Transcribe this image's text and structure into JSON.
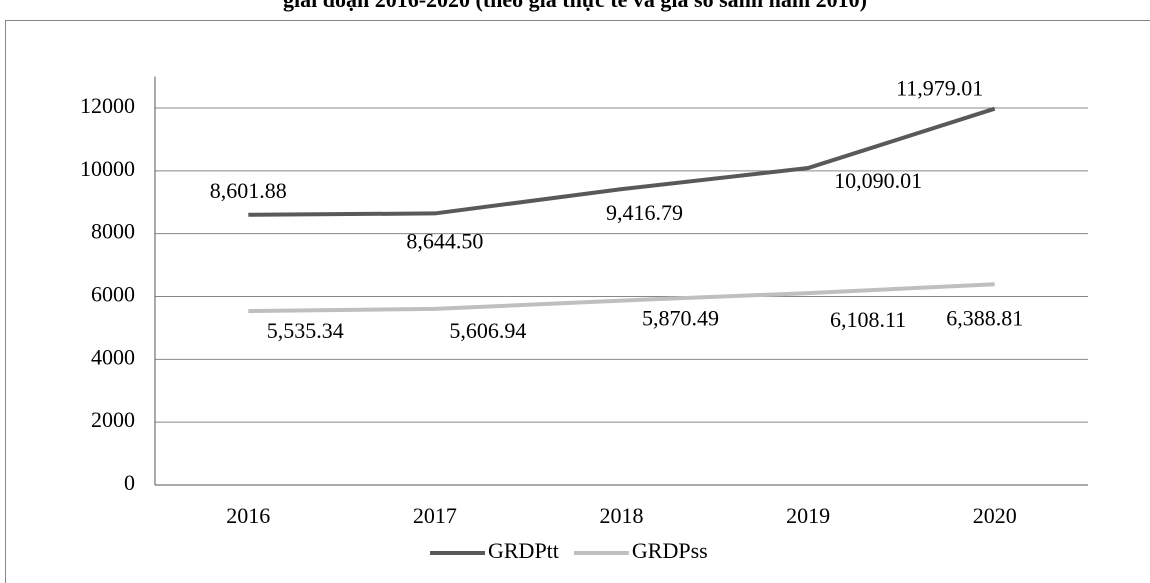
{
  "chart_data": {
    "type": "line",
    "title": "giai đoạn 2016-2020 (theo giá thực tế và giá so sánh năm 2010)",
    "categories": [
      "2016",
      "2017",
      "2018",
      "2019",
      "2020"
    ],
    "series": [
      {
        "name": "GRDPtt",
        "color": "#595959",
        "values": [
          8601.88,
          8644.5,
          9416.79,
          10090.01,
          11979.01
        ],
        "value_labels": [
          "8,601.88",
          "8,644.50",
          "9,416.79",
          "10,090.01",
          "11,979.01"
        ]
      },
      {
        "name": "GRDPss",
        "color": "#bfbfbf",
        "values": [
          5535.34,
          5606.94,
          5870.49,
          6108.11,
          6388.81
        ],
        "value_labels": [
          "5,535.34",
          "5,606.94",
          "5,870.49",
          "6,108.11",
          "6,388.81"
        ]
      }
    ],
    "ylim": [
      0,
      13000
    ],
    "yticks": [
      0,
      2000,
      4000,
      6000,
      8000,
      10000,
      12000
    ],
    "grid": true,
    "legend": "bottom"
  }
}
